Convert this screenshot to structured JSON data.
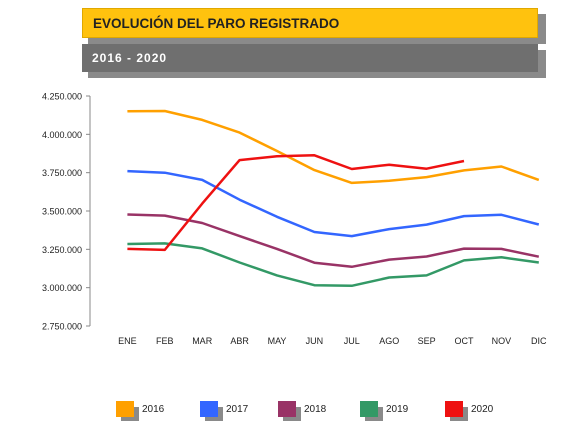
{
  "header": {
    "title": "EVOLUCIÓN DEL PARO REGISTRADO",
    "subtitle": "2016 - 2020"
  },
  "colors": {
    "header_bg": "#ffc20e",
    "subheader_bg": "#6f6f6f"
  },
  "chart_data": {
    "type": "line",
    "title": "EVOLUCIÓN DEL PARO REGISTRADO",
    "subtitle": "2016 - 2020",
    "categories": [
      "ENE",
      "FEB",
      "MAR",
      "ABR",
      "MAY",
      "JUN",
      "JUL",
      "AGO",
      "SEP",
      "OCT",
      "NOV",
      "DIC"
    ],
    "yticks": [
      "4.250.000",
      "4.000.000",
      "3.750.000",
      "3.500.000",
      "3.250.000",
      "3.000.000",
      "2.750.000"
    ],
    "ylim": [
      2750000,
      4250000
    ],
    "grid": false,
    "legend_position": "bottom",
    "series": [
      {
        "name": "2016",
        "color": "#ffa000",
        "values": [
          4150000,
          4152000,
          4094000,
          4011000,
          3891000,
          3767000,
          3683000,
          3697000,
          3721000,
          3765000,
          3790000,
          3703000
        ]
      },
      {
        "name": "2017",
        "color": "#3366ff",
        "values": [
          3760000,
          3750000,
          3703000,
          3574000,
          3462000,
          3363000,
          3336000,
          3382000,
          3411000,
          3467000,
          3475000,
          3412000
        ]
      },
      {
        "name": "2018",
        "color": "#993366",
        "values": [
          3477000,
          3470000,
          3422000,
          3336000,
          3253000,
          3163000,
          3136000,
          3183000,
          3203000,
          3255000,
          3253000,
          3202000
        ]
      },
      {
        "name": "2019",
        "color": "#339966",
        "values": [
          3285000,
          3289000,
          3256000,
          3164000,
          3080000,
          3016000,
          3012000,
          3066000,
          3080000,
          3178000,
          3198000,
          3164000
        ]
      },
      {
        "name": "2020",
        "color": "#ee1111",
        "values": [
          3253000,
          3246000,
          3548000,
          3832000,
          3857000,
          3863000,
          3774000,
          3802000,
          3776000,
          3826000,
          null,
          null
        ]
      }
    ]
  }
}
